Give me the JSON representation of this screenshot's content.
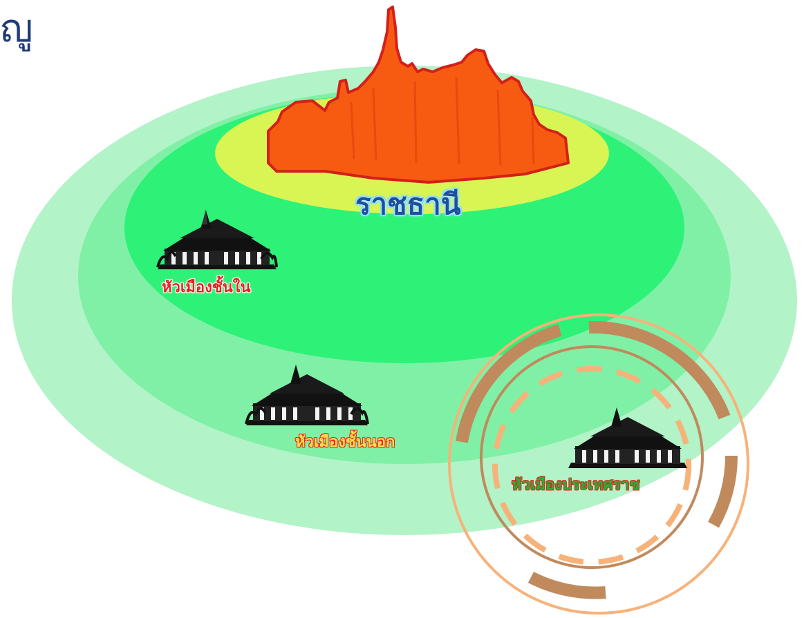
{
  "title_fragment": "ญู",
  "labels": {
    "capital": "ราชธานี",
    "inner_city": "หัวเมืองชั้นใน",
    "outer_city": "หัวเมืองชั้นนอก",
    "tributary": "หัวเมืองประเทศราช"
  },
  "colors": {
    "title": "#1f3b78",
    "outer_ring": "#b2f3c8",
    "middle_ring": "#80f0a6",
    "inner_ring": "#2ef278",
    "capital_zone": "#d8f553",
    "capital_icon": "#f75b12",
    "tributary_ring_light": "#f7b27a",
    "tributary_ring_dark": "#c08a5d"
  },
  "icons": {
    "capital": "palace-silhouette-icon",
    "city": "temple-icon"
  }
}
